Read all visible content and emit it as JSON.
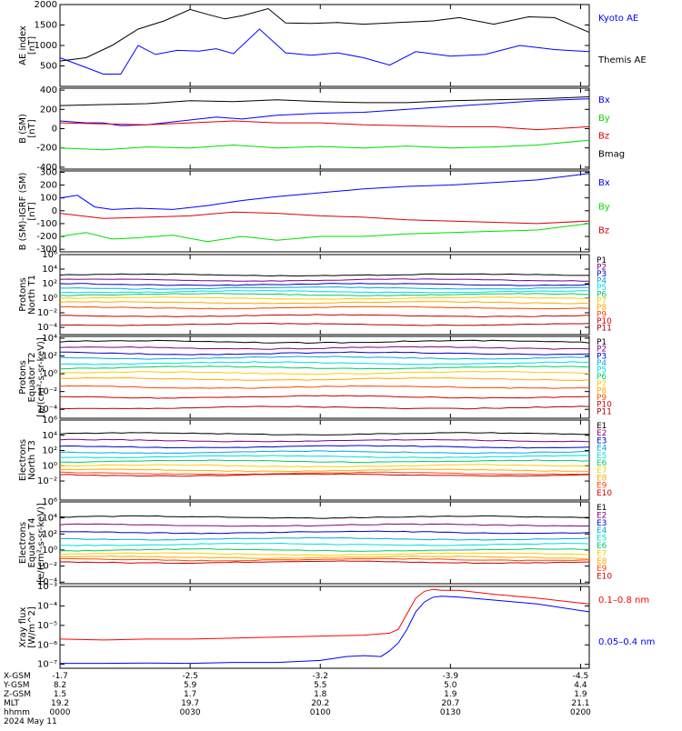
{
  "chart_data": [
    {
      "type": "line",
      "ylabel": "AE index",
      "yunit": "[nT]",
      "log": false,
      "ylim": [
        0,
        2000
      ],
      "ticks": [
        500,
        1000,
        1500,
        2000
      ],
      "tick_labels": [
        "500",
        "1000",
        "1500",
        "2000"
      ],
      "series": [
        {
          "name": "Kyoto AE",
          "color": "#0000ff",
          "x": [
            0,
            5,
            10,
            14,
            18,
            22,
            27,
            32,
            36,
            40,
            46,
            52,
            58,
            64,
            70,
            76,
            82,
            90,
            98,
            106,
            114,
            122
          ],
          "y": [
            700,
            500,
            300,
            300,
            1000,
            780,
            880,
            860,
            920,
            800,
            1400,
            820,
            760,
            820,
            700,
            520,
            850,
            740,
            780,
            1000,
            900,
            850
          ]
        },
        {
          "name": "Themis AE",
          "color": "#000000",
          "x": [
            0,
            6,
            12,
            18,
            24,
            30,
            34,
            38,
            42,
            48,
            52,
            58,
            64,
            70,
            78,
            86,
            92,
            100,
            108,
            114,
            122
          ],
          "y": [
            620,
            700,
            1000,
            1400,
            1600,
            1880,
            1760,
            1650,
            1730,
            1900,
            1550,
            1540,
            1560,
            1520,
            1560,
            1600,
            1680,
            1520,
            1700,
            1680,
            1320
          ]
        }
      ]
    },
    {
      "type": "line",
      "ylabel": "B (SM)",
      "yunit": "[nT]",
      "log": false,
      "ylim": [
        -420,
        420
      ],
      "ticks": [
        -400,
        -200,
        0,
        200,
        400
      ],
      "tick_labels": [
        "-400",
        "-200",
        "0",
        "200",
        "400"
      ],
      "series": [
        {
          "name": "Bx",
          "color": "#0000ff",
          "x": [
            0,
            6,
            10,
            14,
            20,
            28,
            36,
            42,
            50,
            60,
            70,
            80,
            90,
            100,
            110,
            122
          ],
          "y": [
            80,
            60,
            60,
            30,
            40,
            80,
            120,
            100,
            140,
            160,
            170,
            200,
            230,
            260,
            290,
            310
          ]
        },
        {
          "name": "By",
          "color": "#00dd00",
          "x": [
            0,
            10,
            20,
            30,
            40,
            50,
            60,
            70,
            80,
            90,
            100,
            110,
            122
          ],
          "y": [
            -200,
            -220,
            -190,
            -200,
            -170,
            -200,
            -185,
            -200,
            -180,
            -200,
            -190,
            -170,
            -120
          ]
        },
        {
          "name": "Bz",
          "color": "#dd0000",
          "x": [
            0,
            10,
            20,
            30,
            40,
            50,
            60,
            70,
            80,
            90,
            100,
            110,
            122
          ],
          "y": [
            60,
            50,
            40,
            60,
            80,
            60,
            60,
            40,
            30,
            20,
            20,
            -10,
            20
          ]
        },
        {
          "name": "Bmag",
          "color": "#000000",
          "x": [
            0,
            10,
            20,
            30,
            40,
            50,
            60,
            70,
            80,
            90,
            100,
            110,
            122
          ],
          "y": [
            240,
            250,
            260,
            290,
            280,
            300,
            280,
            270,
            270,
            290,
            300,
            310,
            330
          ]
        }
      ]
    },
    {
      "type": "line",
      "ylabel": "B (SM)-IGRF (SM)",
      "yunit": "[nT]",
      "log": false,
      "ylim": [
        -320,
        310
      ],
      "ticks": [
        -300,
        -200,
        -100,
        0,
        100,
        200,
        300
      ],
      "tick_labels": [
        "-300",
        "-200",
        "-100",
        "0",
        "100",
        "200",
        "300"
      ],
      "series": [
        {
          "name": "Bx",
          "color": "#0000ff",
          "x": [
            0,
            4,
            8,
            12,
            18,
            26,
            34,
            42,
            50,
            60,
            70,
            80,
            90,
            100,
            110,
            122
          ],
          "y": [
            100,
            120,
            30,
            10,
            20,
            10,
            40,
            80,
            110,
            140,
            170,
            190,
            200,
            220,
            240,
            290
          ]
        },
        {
          "name": "By",
          "color": "#00dd00",
          "x": [
            0,
            6,
            12,
            18,
            26,
            34,
            42,
            50,
            60,
            70,
            80,
            90,
            100,
            110,
            122
          ],
          "y": [
            -200,
            -170,
            -220,
            -210,
            -190,
            -240,
            -200,
            -230,
            -200,
            -200,
            -180,
            -170,
            -160,
            -150,
            -100
          ]
        },
        {
          "name": "Bz",
          "color": "#dd0000",
          "x": [
            0,
            10,
            20,
            30,
            40,
            50,
            60,
            70,
            80,
            90,
            100,
            110,
            122
          ],
          "y": [
            -20,
            -60,
            -50,
            -40,
            -10,
            -20,
            -40,
            -50,
            -70,
            -80,
            -90,
            -100,
            -80
          ]
        }
      ]
    },
    {
      "type": "line",
      "ylabel": "Protons",
      "ylabel2": "North T1",
      "yunit": "",
      "log": true,
      "ylim": [
        -5,
        6
      ],
      "ticks": [
        -4,
        -2,
        0,
        2,
        4,
        6
      ],
      "tick_labels": [
        "10⁻⁴",
        "10⁻²",
        "10⁰",
        "10²",
        "10⁴",
        "10⁶"
      ],
      "levels": [
        3.2,
        2.5,
        1.9,
        1.4,
        0.9,
        0.5,
        0.0,
        -0.6,
        -1.3,
        -2.4,
        -3.6
      ],
      "series": [
        {
          "name": "P1",
          "color": "#000000"
        },
        {
          "name": "P2",
          "color": "#800080"
        },
        {
          "name": "P3",
          "color": "#0000cc"
        },
        {
          "name": "P4",
          "color": "#00aadd"
        },
        {
          "name": "P5",
          "color": "#00dddd"
        },
        {
          "name": "P6",
          "color": "#00cc66"
        },
        {
          "name": "P7",
          "color": "#ffcc00"
        },
        {
          "name": "P8",
          "color": "#ffaa00"
        },
        {
          "name": "P9",
          "color": "#ff4400"
        },
        {
          "name": "P10",
          "color": "#cc0000"
        },
        {
          "name": "P11",
          "color": "#aa0000"
        }
      ]
    },
    {
      "type": "line",
      "ylabel": "Protons",
      "ylabel2": "Equator T2",
      "yunit": "[p/(cm²-s-sr-keV)]",
      "log": true,
      "ylim": [
        -5,
        4.2
      ],
      "ticks": [
        -4,
        -2,
        0,
        2,
        4
      ],
      "tick_labels": [
        "10⁻⁴",
        "10⁻²",
        "10⁰",
        "10²",
        "10⁴"
      ],
      "levels": [
        3.6,
        2.9,
        2.3,
        1.8,
        1.2,
        0.7,
        0.1,
        -0.6,
        -1.5,
        -2.6,
        -3.8
      ],
      "series": [
        {
          "name": "P1",
          "color": "#000000"
        },
        {
          "name": "P2",
          "color": "#800080"
        },
        {
          "name": "P3",
          "color": "#0000cc"
        },
        {
          "name": "P4",
          "color": "#00aadd"
        },
        {
          "name": "P5",
          "color": "#00dddd"
        },
        {
          "name": "P6",
          "color": "#00cc66"
        },
        {
          "name": "P7",
          "color": "#ffcc00"
        },
        {
          "name": "P8",
          "color": "#ffaa00"
        },
        {
          "name": "P9",
          "color": "#ff4400"
        },
        {
          "name": "P10",
          "color": "#cc0000"
        },
        {
          "name": "P11",
          "color": "#aa0000"
        }
      ]
    },
    {
      "type": "line",
      "ylabel": "Electrons",
      "ylabel2": "North T3",
      "yunit": "",
      "log": true,
      "ylim": [
        -4.5,
        6
      ],
      "ticks": [
        -2,
        0,
        2,
        4,
        6
      ],
      "tick_labels": [
        "10⁻²",
        "10⁰",
        "10²",
        "10⁴",
        "10⁶"
      ],
      "levels": [
        4.2,
        3.3,
        2.5,
        1.8,
        1.2,
        0.6,
        0.0,
        -0.6,
        -1.0,
        -1.2
      ],
      "series": [
        {
          "name": "E1",
          "color": "#000000"
        },
        {
          "name": "E2",
          "color": "#800080"
        },
        {
          "name": "E3",
          "color": "#0000cc"
        },
        {
          "name": "E4",
          "color": "#00aadd"
        },
        {
          "name": "E5",
          "color": "#00dddd"
        },
        {
          "name": "E6",
          "color": "#00cc66"
        },
        {
          "name": "E7",
          "color": "#ffcc00"
        },
        {
          "name": "E8",
          "color": "#ffaa00"
        },
        {
          "name": "E9",
          "color": "#ff4400"
        },
        {
          "name": "E10",
          "color": "#cc0000"
        }
      ]
    },
    {
      "type": "line",
      "ylabel": "Electrons",
      "ylabel2": "Equator T4",
      "yunit": "[e/(cm²-s-sr-keV)]",
      "log": true,
      "ylim": [
        -4.2,
        6
      ],
      "ticks": [
        -4,
        -2,
        0,
        2,
        4,
        6
      ],
      "tick_labels": [
        "10⁻⁴",
        "10⁻²",
        "10⁰",
        "10²",
        "10⁴",
        "10⁶"
      ],
      "levels": [
        4.1,
        3.1,
        2.2,
        1.4,
        0.7,
        0.0,
        -0.5,
        -0.9,
        -1.2,
        -1.5
      ],
      "series": [
        {
          "name": "E1",
          "color": "#000000"
        },
        {
          "name": "E2",
          "color": "#800080"
        },
        {
          "name": "E3",
          "color": "#0000cc"
        },
        {
          "name": "E4",
          "color": "#00aadd"
        },
        {
          "name": "E5",
          "color": "#00dddd"
        },
        {
          "name": "E6",
          "color": "#00cc66"
        },
        {
          "name": "E7",
          "color": "#ffcc00"
        },
        {
          "name": "E8",
          "color": "#ffaa00"
        },
        {
          "name": "E9",
          "color": "#ff4400"
        },
        {
          "name": "E10",
          "color": "#cc0000"
        }
      ]
    },
    {
      "type": "line",
      "ylabel": "Xray flux",
      "yunit": "[W/m^2]",
      "log": true,
      "ylim": [
        -7.2,
        -3
      ],
      "ticks": [
        -7,
        -6,
        -5,
        -4,
        -3
      ],
      "tick_labels": [
        "10⁻⁷",
        "10⁻⁶",
        "10⁻⁵",
        "10⁻⁴",
        "10⁻³"
      ],
      "series": [
        {
          "name": "0.1–0.8 nm",
          "color": "#ff0000",
          "x": [
            0,
            10,
            20,
            30,
            40,
            50,
            60,
            70,
            76,
            78,
            80,
            82,
            84,
            86,
            88,
            92,
            100,
            110,
            122
          ],
          "y": [
            -5.7,
            -5.75,
            -5.7,
            -5.7,
            -5.65,
            -5.6,
            -5.55,
            -5.5,
            -5.4,
            -5.2,
            -4.4,
            -3.6,
            -3.25,
            -3.15,
            -3.2,
            -3.2,
            -3.4,
            -3.6,
            -3.9
          ]
        },
        {
          "name": "0.05–0.4 nm",
          "color": "#0000ff",
          "x": [
            0,
            10,
            20,
            30,
            40,
            50,
            60,
            66,
            70,
            74,
            76,
            78,
            80,
            82,
            84,
            86,
            88,
            92,
            100,
            110,
            122
          ],
          "y": [
            -6.95,
            -6.95,
            -6.93,
            -6.95,
            -6.9,
            -6.9,
            -6.8,
            -6.6,
            -6.55,
            -6.6,
            -6.3,
            -5.9,
            -5.2,
            -4.3,
            -3.8,
            -3.55,
            -3.5,
            -3.55,
            -3.7,
            -3.9,
            -4.3
          ]
        }
      ]
    }
  ],
  "time_axis": {
    "xlim": [
      0,
      122
    ],
    "ticks": [
      0,
      30,
      60,
      90,
      120
    ],
    "row_labels": [
      "X-GSM",
      "Y-GSM",
      "Z-GSM",
      "MLT",
      "hhmm"
    ],
    "columns": [
      [
        "-1.7",
        "8.2",
        "1.5",
        "19.2",
        "0000"
      ],
      [
        "-2.5",
        "5.9",
        "1.7",
        "19.7",
        "0030"
      ],
      [
        "-3.2",
        "5.5",
        "1.8",
        "20.2",
        "0100"
      ],
      [
        "-3.9",
        "5.0",
        "1.9",
        "20.7",
        "0130"
      ],
      [
        "-4.5",
        "4.4",
        "1.9",
        "21.1",
        "0200"
      ]
    ],
    "date": "2024 May 11"
  }
}
